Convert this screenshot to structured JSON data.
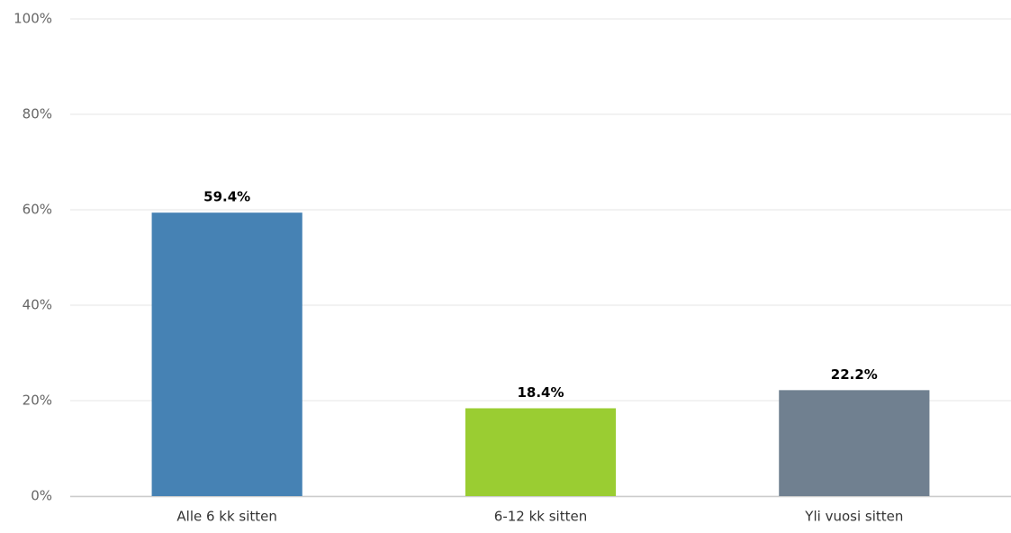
{
  "chart_data": {
    "type": "bar",
    "categories": [
      "Alle 6 kk sitten",
      "6-12 kk sitten",
      "Yli vuosi sitten"
    ],
    "values": [
      59.4,
      18.4,
      22.2
    ],
    "value_labels": [
      "59.4%",
      "18.4%",
      "22.2%"
    ],
    "colors": [
      "#4682b4",
      "#9acd32",
      "#708090"
    ],
    "ylim": [
      0,
      100
    ],
    "yticks": [
      {
        "value": 0,
        "label": "0%"
      },
      {
        "value": 20,
        "label": "20%"
      },
      {
        "value": 40,
        "label": "40%"
      },
      {
        "value": 60,
        "label": "60%"
      },
      {
        "value": 80,
        "label": "80%"
      },
      {
        "value": 100,
        "label": "100%"
      }
    ],
    "grid": true
  }
}
